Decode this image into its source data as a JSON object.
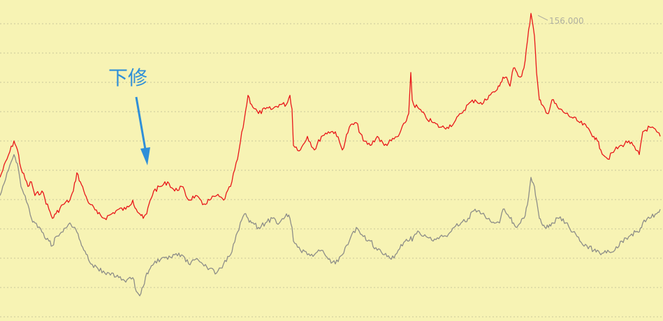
{
  "chart_data": {
    "type": "line",
    "title": "",
    "xlabel": "",
    "ylabel": "",
    "grid": true,
    "ylim": [
      90,
      158
    ],
    "series": [
      {
        "color": "#e8171a",
        "x": [
          0,
          10,
          20,
          25,
          30,
          40,
          45,
          50,
          60,
          70,
          75,
          80,
          90,
          100,
          105,
          110,
          115,
          120,
          125,
          130,
          140,
          150,
          160,
          170,
          180,
          190,
          195,
          200,
          205,
          210,
          215,
          220,
          230,
          240,
          250,
          260,
          270,
          280,
          290,
          300,
          310,
          320,
          330,
          340,
          350,
          355,
          360,
          370,
          380,
          390,
          400,
          410,
          415,
          418,
          420,
          430,
          440,
          450,
          460,
          470,
          480,
          490,
          500,
          510,
          520,
          530,
          540,
          550,
          560,
          570,
          580,
          585,
          588,
          590,
          592,
          600,
          610,
          620,
          630,
          640,
          650,
          660,
          670,
          680,
          690,
          700,
          710,
          715,
          720,
          725,
          730,
          735,
          740,
          745,
          750,
          755,
          760,
          765,
          768,
          770,
          772,
          775,
          780,
          785,
          790,
          800,
          810,
          820,
          830,
          840,
          850,
          855,
          860,
          870,
          880,
          890,
          900,
          910,
          915,
          920,
          930,
          940,
          945
        ],
        "values": [
          120,
          124,
          128,
          126,
          122,
          118,
          119,
          116,
          117,
          113,
          111,
          112,
          114,
          115,
          117,
          121,
          119,
          117,
          115,
          114,
          112,
          111,
          112,
          113,
          113,
          115,
          113,
          112,
          111,
          112,
          115,
          117,
          118,
          119,
          117,
          118,
          115,
          116,
          114,
          115,
          116,
          115,
          118,
          124,
          133,
          138,
          136,
          134,
          135,
          135,
          136,
          136,
          138,
          135,
          127,
          126,
          129,
          126,
          129,
          130,
          130,
          126,
          131,
          132,
          128,
          127,
          129,
          127,
          128,
          129,
          132,
          134,
          143,
          137,
          136,
          135,
          133,
          132,
          131,
          131,
          132,
          134,
          136,
          137,
          136,
          138,
          139,
          140,
          142,
          142,
          140,
          144,
          143,
          142,
          144,
          150,
          156,
          151,
          143,
          140,
          137,
          136,
          135,
          134,
          137,
          135,
          134,
          133,
          132,
          131,
          129,
          128,
          126,
          124,
          126,
          127,
          128,
          126,
          125,
          130,
          131,
          130,
          129
        ]
      },
      {
        "color": "#8d8d88",
        "x": [
          0,
          10,
          20,
          25,
          30,
          40,
          45,
          50,
          60,
          70,
          75,
          80,
          90,
          100,
          105,
          110,
          115,
          120,
          125,
          130,
          140,
          150,
          160,
          170,
          180,
          190,
          195,
          200,
          205,
          210,
          215,
          220,
          230,
          240,
          250,
          260,
          270,
          280,
          290,
          300,
          310,
          320,
          330,
          340,
          350,
          355,
          360,
          370,
          380,
          390,
          400,
          410,
          415,
          418,
          420,
          430,
          440,
          450,
          460,
          470,
          480,
          490,
          500,
          510,
          520,
          530,
          540,
          550,
          560,
          570,
          580,
          585,
          588,
          590,
          592,
          600,
          610,
          620,
          630,
          640,
          650,
          660,
          670,
          680,
          690,
          700,
          710,
          715,
          720,
          725,
          730,
          735,
          740,
          745,
          750,
          755,
          760,
          765,
          768,
          770,
          772,
          775,
          780,
          785,
          790,
          800,
          810,
          820,
          830,
          840,
          850,
          855,
          860,
          870,
          880,
          890,
          900,
          910,
          915,
          920,
          930,
          940,
          945
        ],
        "values": [
          116,
          121,
          125,
          123,
          118,
          114,
          111,
          110,
          108,
          106,
          105,
          107,
          108,
          110,
          109,
          108,
          106,
          104,
          103,
          101,
          100,
          99,
          99,
          98,
          97,
          98,
          95,
          94,
          96,
          99,
          100,
          101,
          102,
          102,
          103,
          103,
          101,
          102,
          101,
          100,
          99,
          101,
          103,
          108,
          112,
          111,
          110,
          109,
          110,
          111,
          110,
          112,
          111,
          109,
          106,
          104,
          103,
          103,
          104,
          102,
          101,
          103,
          106,
          109,
          107,
          106,
          104,
          103,
          102,
          104,
          106,
          106,
          107,
          106,
          107,
          108,
          107,
          106,
          107,
          107,
          109,
          110,
          111,
          113,
          112,
          111,
          110,
          110,
          113,
          112,
          111,
          110,
          109,
          110,
          111,
          114,
          120,
          118,
          115,
          113,
          111,
          110,
          109,
          109,
          110,
          111,
          110,
          108,
          106,
          105,
          104,
          104,
          103,
          104,
          104,
          106,
          107,
          108,
          108,
          110,
          111,
          112,
          113
        ]
      }
    ],
    "annotations": [
      {
        "text": "下修"
      },
      {
        "text": "156.000"
      }
    ]
  }
}
